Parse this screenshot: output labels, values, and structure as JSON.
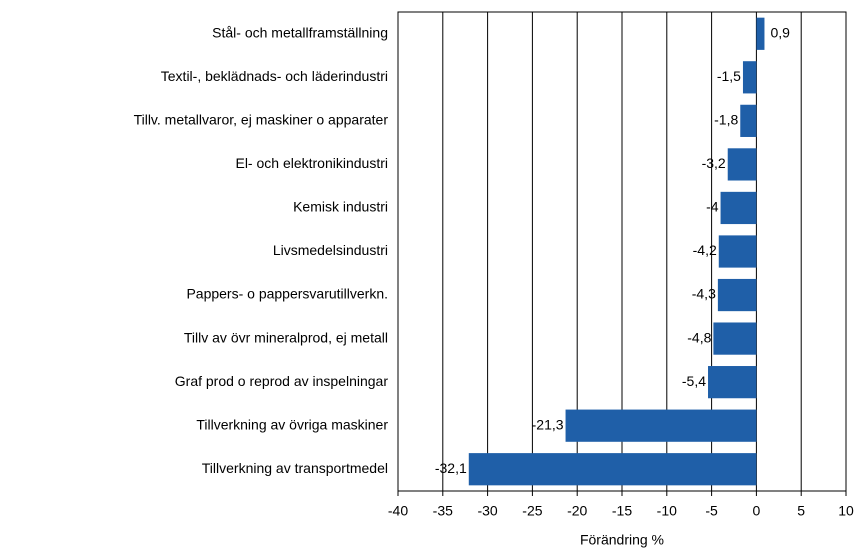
{
  "chart_data": {
    "type": "barh",
    "categories": [
      "Stål- och metallframställning",
      "Textil-, beklädnads- och läderindustri",
      "Tillv. metallvaror, ej maskiner o apparater",
      "El- och elektronikindustri",
      "Kemisk industri",
      "Livsmedelsindustri",
      "Pappers- o pappersvarutillverkn.",
      "Tillv av övr mineralprod, ej metall",
      "Graf prod o reprod av inspelningar",
      "Tillverkning av övriga maskiner",
      "Tillverkning av transportmedel"
    ],
    "values": [
      0.9,
      -1.5,
      -1.8,
      -3.2,
      -4,
      -4.2,
      -4.3,
      -4.8,
      -5.4,
      -21.3,
      -32.1
    ],
    "value_labels": [
      "0,9",
      "-1,5",
      "-1,8",
      "-3,2",
      "-4",
      "-4,2",
      "-4,3",
      "-4,8",
      "-5,4",
      "-21,3",
      "-32,1"
    ],
    "color": "#1f5fa8",
    "xlabel": "Förändring %",
    "xlim": [
      -40,
      10
    ],
    "xticks": [
      -40,
      -35,
      -30,
      -25,
      -20,
      -15,
      -10,
      -5,
      0,
      5,
      10
    ],
    "grid": true
  }
}
